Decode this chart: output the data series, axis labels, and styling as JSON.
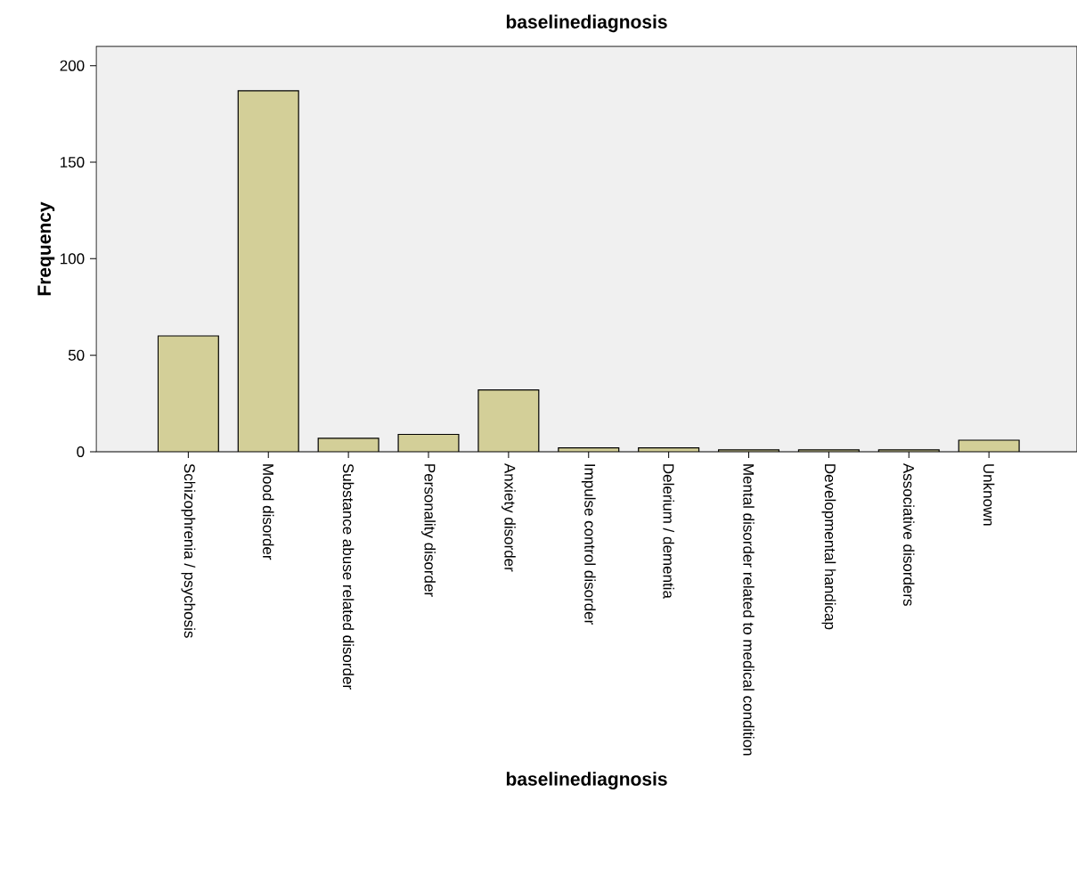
{
  "chart_data": {
    "type": "bar",
    "title": "baselinediagnosis",
    "xlabel": "baselinediagnosis",
    "ylabel": "Frequency",
    "categories": [
      "Schizophrenia / psychosis",
      "Mood disorder",
      "Substance abuse related disorder",
      "Personality disorder",
      "Anxiety disorder",
      "Impulse control disorder",
      "Delerium / dementia",
      "Mental disorder related to medical condition",
      "Developmental handicap",
      "Associative disorders",
      "Unknown"
    ],
    "values": [
      60,
      187,
      7,
      9,
      32,
      2,
      2,
      1,
      1,
      1,
      6
    ],
    "color": "#d3cf98",
    "ylim": [
      0,
      210
    ],
    "yticks": [
      0,
      50,
      100,
      150,
      200
    ]
  }
}
